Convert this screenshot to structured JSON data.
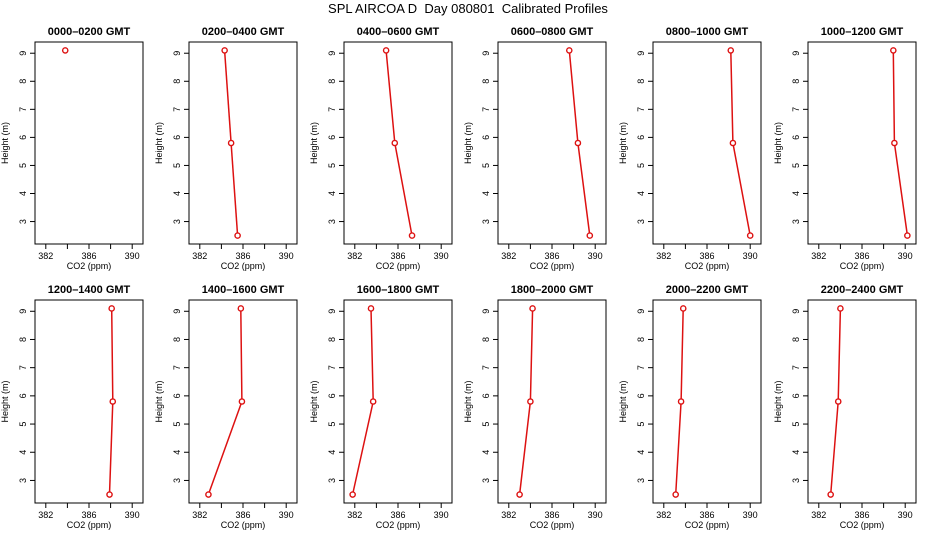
{
  "title": "SPL AIRCOA D  Day 080801  Calibrated Profiles",
  "colors": {
    "line": "#dd1111",
    "axis": "#000000"
  },
  "chart_data": [
    {
      "type": "line",
      "title": "0000–0200 GMT",
      "xlabel": "CO2 (ppm)",
      "ylabel": "Height (m)",
      "xlim": [
        381,
        391
      ],
      "ylim": [
        2.2,
        9.4
      ],
      "xticks": [
        382,
        386,
        390
      ],
      "yticks": [
        3,
        4,
        5,
        6,
        7,
        8,
        9
      ],
      "grid": false,
      "series": [
        {
          "x": [
            383.8
          ],
          "y": [
            9.1
          ]
        }
      ]
    },
    {
      "type": "line",
      "title": "0200–0400 GMT",
      "xlabel": "CO2 (ppm)",
      "ylabel": "Height (m)",
      "xlim": [
        381,
        391
      ],
      "ylim": [
        2.2,
        9.4
      ],
      "xticks": [
        382,
        386,
        390
      ],
      "yticks": [
        3,
        4,
        5,
        6,
        7,
        8,
        9
      ],
      "grid": false,
      "series": [
        {
          "x": [
            384.3,
            384.9,
            385.5
          ],
          "y": [
            9.1,
            5.8,
            2.5
          ]
        }
      ]
    },
    {
      "type": "line",
      "title": "0400–0600 GMT",
      "xlabel": "CO2 (ppm)",
      "ylabel": "Height (m)",
      "xlim": [
        381,
        391
      ],
      "ylim": [
        2.2,
        9.4
      ],
      "xticks": [
        382,
        386,
        390
      ],
      "yticks": [
        3,
        4,
        5,
        6,
        7,
        8,
        9
      ],
      "grid": false,
      "series": [
        {
          "x": [
            384.9,
            385.7,
            387.3
          ],
          "y": [
            9.1,
            5.8,
            2.5
          ]
        }
      ]
    },
    {
      "type": "line",
      "title": "0600–0800 GMT",
      "xlabel": "CO2 (ppm)",
      "ylabel": "Height (m)",
      "xlim": [
        381,
        391
      ],
      "ylim": [
        2.2,
        9.4
      ],
      "xticks": [
        382,
        386,
        390
      ],
      "yticks": [
        3,
        4,
        5,
        6,
        7,
        8,
        9
      ],
      "grid": false,
      "series": [
        {
          "x": [
            387.6,
            388.4,
            389.5
          ],
          "y": [
            9.1,
            5.8,
            2.5
          ]
        }
      ]
    },
    {
      "type": "line",
      "title": "0800–1000 GMT",
      "xlabel": "CO2 (ppm)",
      "ylabel": "Height (m)",
      "xlim": [
        381,
        391
      ],
      "ylim": [
        2.2,
        9.4
      ],
      "xticks": [
        382,
        386,
        390
      ],
      "yticks": [
        3,
        4,
        5,
        6,
        7,
        8,
        9
      ],
      "grid": false,
      "series": [
        {
          "x": [
            388.2,
            388.4,
            390.0
          ],
          "y": [
            9.1,
            5.8,
            2.5
          ]
        }
      ]
    },
    {
      "type": "line",
      "title": "1000–1200 GMT",
      "xlabel": "CO2 (ppm)",
      "ylabel": "Height (m)",
      "xlim": [
        381,
        391
      ],
      "ylim": [
        2.2,
        9.4
      ],
      "xticks": [
        382,
        386,
        390
      ],
      "yticks": [
        3,
        4,
        5,
        6,
        7,
        8,
        9
      ],
      "grid": false,
      "series": [
        {
          "x": [
            388.9,
            389.0,
            390.2
          ],
          "y": [
            9.1,
            5.8,
            2.5
          ]
        }
      ]
    },
    {
      "type": "line",
      "title": "1200–1400 GMT",
      "xlabel": "CO2 (ppm)",
      "ylabel": "Height (m)",
      "xlim": [
        381,
        391
      ],
      "ylim": [
        2.2,
        9.4
      ],
      "xticks": [
        382,
        386,
        390
      ],
      "yticks": [
        3,
        4,
        5,
        6,
        7,
        8,
        9
      ],
      "grid": false,
      "series": [
        {
          "x": [
            388.1,
            388.2,
            387.9
          ],
          "y": [
            9.1,
            5.8,
            2.5
          ]
        }
      ]
    },
    {
      "type": "line",
      "title": "1400–1600 GMT",
      "xlabel": "CO2 (ppm)",
      "ylabel": "Height (m)",
      "xlim": [
        381,
        391
      ],
      "ylim": [
        2.2,
        9.4
      ],
      "xticks": [
        382,
        386,
        390
      ],
      "yticks": [
        3,
        4,
        5,
        6,
        7,
        8,
        9
      ],
      "grid": false,
      "series": [
        {
          "x": [
            385.8,
            385.9,
            382.8
          ],
          "y": [
            9.1,
            5.8,
            2.5
          ]
        }
      ]
    },
    {
      "type": "line",
      "title": "1600–1800 GMT",
      "xlabel": "CO2 (ppm)",
      "ylabel": "Height (m)",
      "xlim": [
        381,
        391
      ],
      "ylim": [
        2.2,
        9.4
      ],
      "xticks": [
        382,
        386,
        390
      ],
      "yticks": [
        3,
        4,
        5,
        6,
        7,
        8,
        9
      ],
      "grid": false,
      "series": [
        {
          "x": [
            383.5,
            383.7,
            381.8
          ],
          "y": [
            9.1,
            5.8,
            2.5
          ]
        }
      ]
    },
    {
      "type": "line",
      "title": "1800–2000 GMT",
      "xlabel": "CO2 (ppm)",
      "ylabel": "Height (m)",
      "xlim": [
        381,
        391
      ],
      "ylim": [
        2.2,
        9.4
      ],
      "xticks": [
        382,
        386,
        390
      ],
      "yticks": [
        3,
        4,
        5,
        6,
        7,
        8,
        9
      ],
      "grid": false,
      "series": [
        {
          "x": [
            384.2,
            384.0,
            383.0
          ],
          "y": [
            9.1,
            5.8,
            2.5
          ]
        }
      ]
    },
    {
      "type": "line",
      "title": "2000–2200 GMT",
      "xlabel": "CO2 (ppm)",
      "ylabel": "Height (m)",
      "xlim": [
        381,
        391
      ],
      "ylim": [
        2.2,
        9.4
      ],
      "xticks": [
        382,
        386,
        390
      ],
      "yticks": [
        3,
        4,
        5,
        6,
        7,
        8,
        9
      ],
      "grid": false,
      "series": [
        {
          "x": [
            383.8,
            383.6,
            383.1
          ],
          "y": [
            9.1,
            5.8,
            2.5
          ]
        }
      ]
    },
    {
      "type": "line",
      "title": "2200–2400 GMT",
      "xlabel": "CO2 (ppm)",
      "ylabel": "Height (m)",
      "xlim": [
        381,
        391
      ],
      "ylim": [
        2.2,
        9.4
      ],
      "xticks": [
        382,
        386,
        390
      ],
      "yticks": [
        3,
        4,
        5,
        6,
        7,
        8,
        9
      ],
      "grid": false,
      "series": [
        {
          "x": [
            384.0,
            383.8,
            383.1
          ],
          "y": [
            9.1,
            5.8,
            2.5
          ]
        }
      ]
    }
  ]
}
